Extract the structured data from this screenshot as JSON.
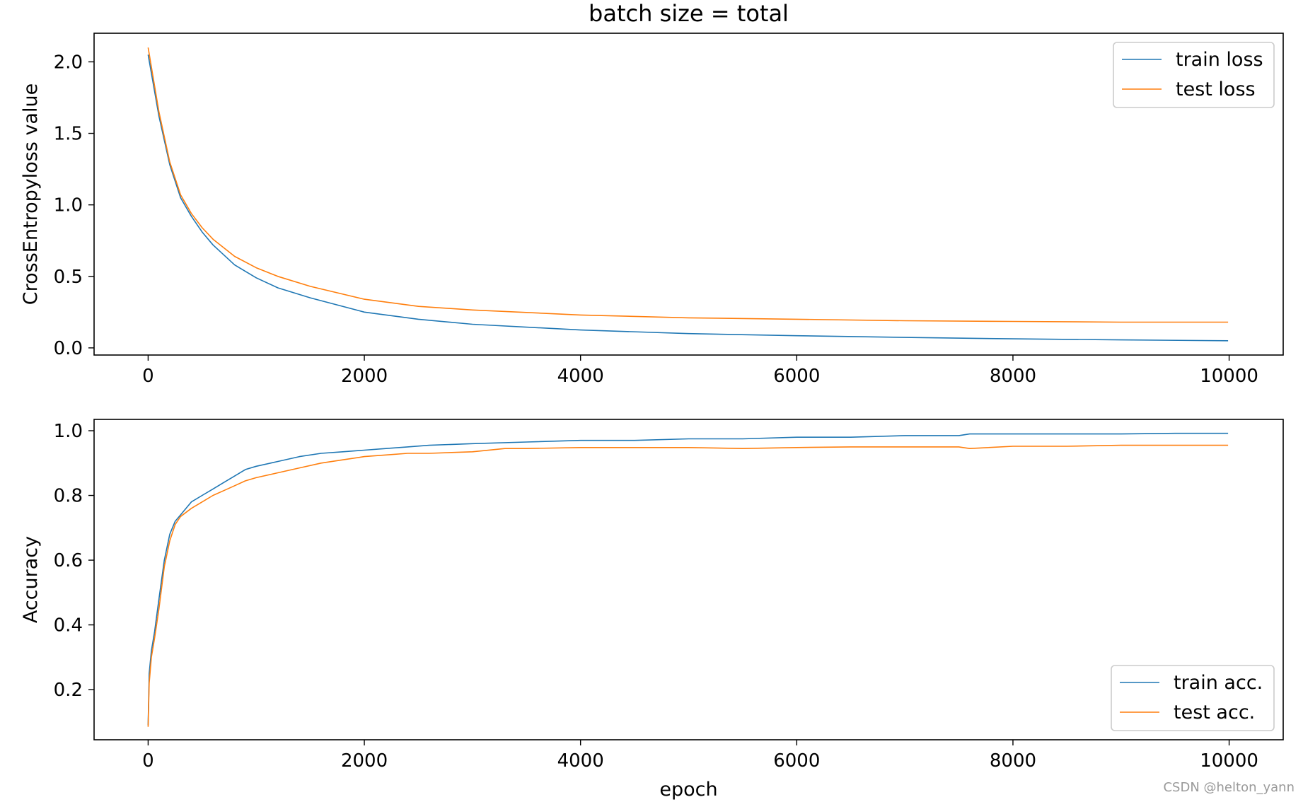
{
  "figure_title": "batch size = total",
  "watermark": "CSDN @helton_yann",
  "chart_data": [
    {
      "type": "line",
      "title": "batch size = total",
      "xlabel": "",
      "ylabel": "CrossEntropyloss value",
      "xlim": [
        -500,
        10500
      ],
      "ylim": [
        -0.05,
        2.2
      ],
      "xticks": [
        0,
        2000,
        4000,
        6000,
        8000,
        10000
      ],
      "yticks": [
        0.0,
        0.5,
        1.0,
        1.5,
        2.0
      ],
      "ytick_labels": [
        "0.0",
        "0.5",
        "1.0",
        "1.5",
        "2.0"
      ],
      "legend_position": "top-right",
      "series": [
        {
          "name": "train loss",
          "color": "#1f77b4",
          "x": [
            0,
            100,
            200,
            300,
            400,
            500,
            600,
            800,
            1000,
            1200,
            1500,
            2000,
            2500,
            3000,
            4000,
            5000,
            6000,
            7000,
            8000,
            9000,
            9990
          ],
          "y": [
            2.05,
            1.62,
            1.28,
            1.05,
            0.92,
            0.81,
            0.72,
            0.58,
            0.49,
            0.42,
            0.35,
            0.25,
            0.2,
            0.165,
            0.125,
            0.1,
            0.085,
            0.073,
            0.063,
            0.056,
            0.05
          ]
        },
        {
          "name": "test loss",
          "color": "#ff7f0e",
          "x": [
            0,
            100,
            200,
            300,
            400,
            500,
            600,
            800,
            1000,
            1200,
            1500,
            2000,
            2500,
            3000,
            4000,
            5000,
            6000,
            7000,
            8000,
            9000,
            9990
          ],
          "y": [
            2.1,
            1.65,
            1.3,
            1.07,
            0.94,
            0.84,
            0.76,
            0.64,
            0.56,
            0.5,
            0.43,
            0.34,
            0.29,
            0.265,
            0.23,
            0.21,
            0.2,
            0.19,
            0.185,
            0.18,
            0.18
          ]
        }
      ]
    },
    {
      "type": "line",
      "title": "",
      "xlabel": "epoch",
      "ylabel": "Accuracy",
      "xlim": [
        -500,
        10500
      ],
      "ylim": [
        0.045,
        1.035
      ],
      "xticks": [
        0,
        2000,
        4000,
        6000,
        8000,
        10000
      ],
      "yticks": [
        0.2,
        0.4,
        0.6,
        0.8,
        1.0
      ],
      "ytick_labels": [
        "0.2",
        "0.4",
        "0.6",
        "0.8",
        "1.0"
      ],
      "legend_position": "bottom-right",
      "series": [
        {
          "name": "train acc.",
          "color": "#1f77b4",
          "x": [
            0,
            10,
            30,
            60,
            100,
            150,
            200,
            250,
            300,
            400,
            500,
            600,
            700,
            800,
            900,
            1000,
            1200,
            1400,
            1600,
            1800,
            2000,
            2200,
            2400,
            2600,
            3000,
            3500,
            4000,
            4500,
            5000,
            5500,
            6000,
            6500,
            7000,
            7500,
            7600,
            8000,
            8500,
            9000,
            9500,
            9990
          ],
          "y": [
            0.09,
            0.25,
            0.32,
            0.38,
            0.48,
            0.6,
            0.68,
            0.72,
            0.74,
            0.78,
            0.8,
            0.82,
            0.84,
            0.86,
            0.88,
            0.89,
            0.905,
            0.92,
            0.93,
            0.935,
            0.94,
            0.945,
            0.95,
            0.955,
            0.96,
            0.965,
            0.97,
            0.97,
            0.975,
            0.975,
            0.98,
            0.98,
            0.985,
            0.985,
            0.99,
            0.99,
            0.99,
            0.99,
            0.992,
            0.992
          ]
        },
        {
          "name": "test acc.",
          "color": "#ff7f0e",
          "x": [
            0,
            10,
            30,
            60,
            100,
            150,
            200,
            250,
            300,
            400,
            500,
            600,
            700,
            800,
            900,
            1000,
            1200,
            1400,
            1600,
            1800,
            2000,
            2200,
            2400,
            2600,
            3000,
            3300,
            3500,
            4000,
            4500,
            5000,
            5500,
            6000,
            6500,
            7000,
            7500,
            7600,
            8000,
            8500,
            9000,
            9500,
            9990
          ],
          "y": [
            0.085,
            0.22,
            0.3,
            0.36,
            0.45,
            0.58,
            0.66,
            0.71,
            0.735,
            0.76,
            0.78,
            0.8,
            0.815,
            0.83,
            0.845,
            0.855,
            0.87,
            0.885,
            0.9,
            0.91,
            0.92,
            0.925,
            0.93,
            0.93,
            0.935,
            0.945,
            0.945,
            0.948,
            0.948,
            0.948,
            0.945,
            0.948,
            0.95,
            0.95,
            0.95,
            0.945,
            0.952,
            0.952,
            0.955,
            0.955,
            0.955
          ]
        }
      ]
    }
  ]
}
